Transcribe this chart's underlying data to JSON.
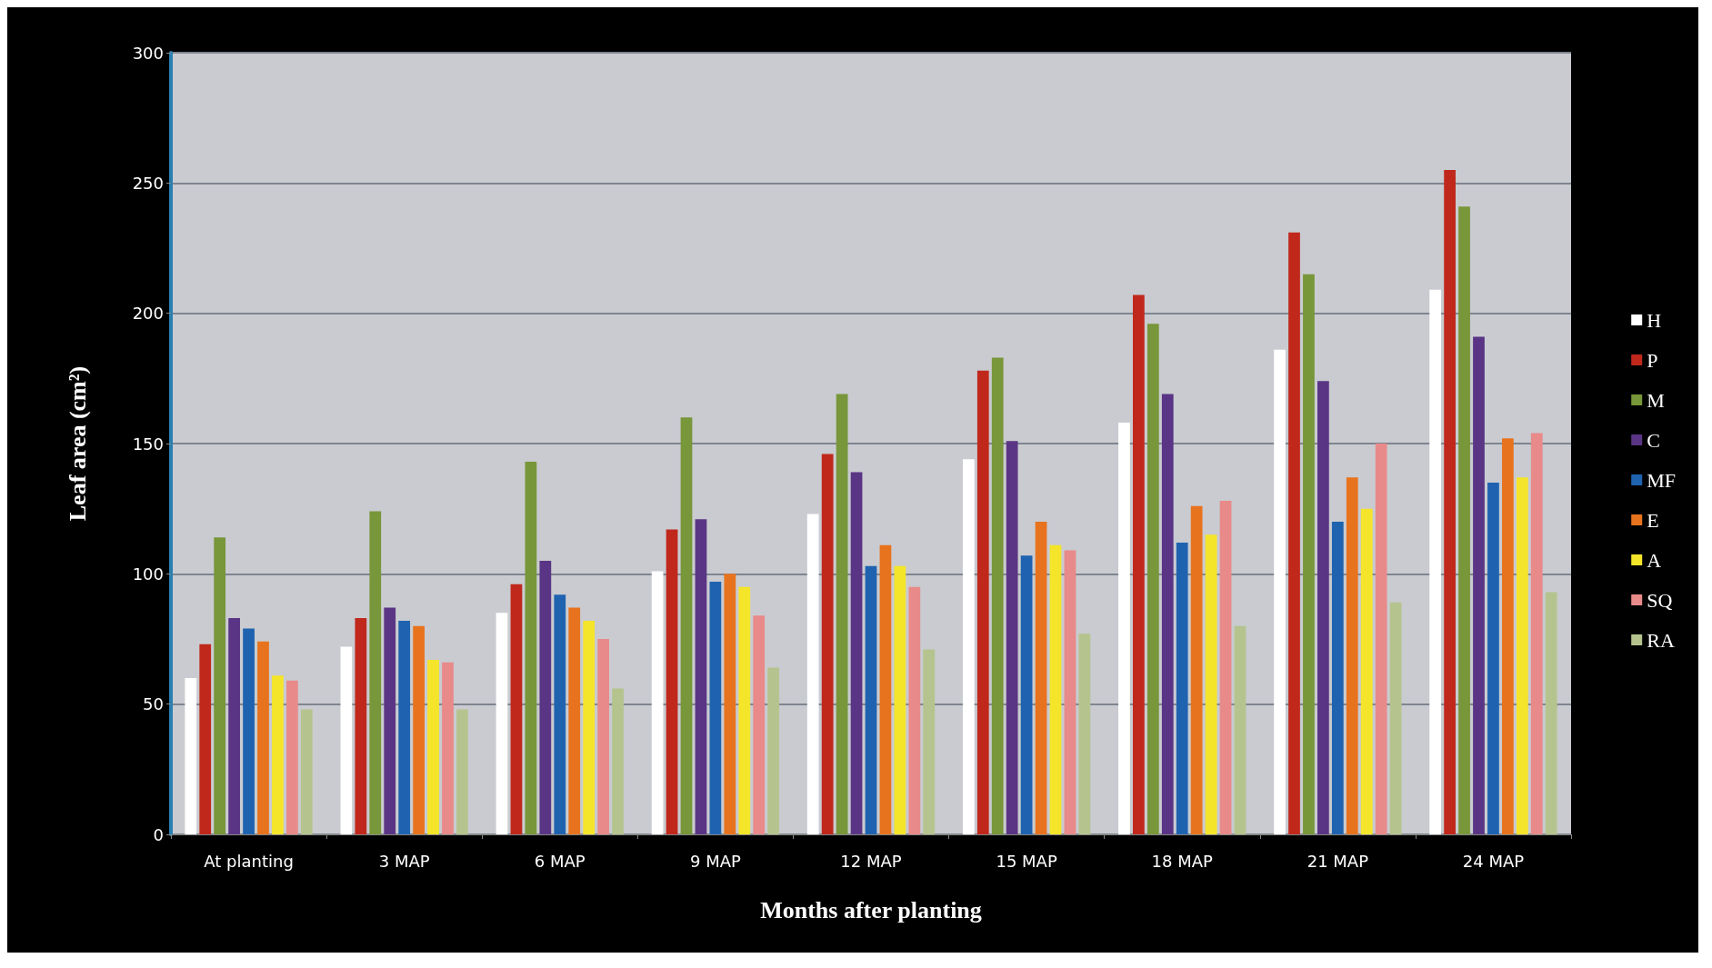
{
  "chart_data": {
    "type": "bar",
    "xlabel": "Months after planting",
    "ylabel": "Leaf area (cm²)",
    "categories": [
      "At planting",
      "3 MAP",
      "6 MAP",
      "9 MAP",
      "12 MAP",
      "15 MAP",
      "18 MAP",
      "21 MAP",
      "24 MAP"
    ],
    "series": [
      {
        "name": "H",
        "color": "#ffffff",
        "values": [
          60,
          72,
          85,
          101,
          123,
          144,
          158,
          186,
          209
        ]
      },
      {
        "name": "P",
        "color": "#c0281c",
        "values": [
          73,
          83,
          96,
          117,
          146,
          178,
          207,
          231,
          255
        ]
      },
      {
        "name": "M",
        "color": "#78963a",
        "values": [
          114,
          124,
          143,
          160,
          169,
          183,
          196,
          215,
          241
        ]
      },
      {
        "name": "C",
        "color": "#5b3585",
        "values": [
          83,
          87,
          105,
          121,
          139,
          151,
          169,
          174,
          191
        ]
      },
      {
        "name": "MF",
        "color": "#1f63b0",
        "values": [
          79,
          82,
          92,
          97,
          103,
          107,
          112,
          120,
          135
        ]
      },
      {
        "name": "E",
        "color": "#e8731e",
        "values": [
          74,
          80,
          87,
          100,
          111,
          120,
          126,
          137,
          152
        ]
      },
      {
        "name": "A",
        "color": "#f5e52a",
        "values": [
          61,
          67,
          82,
          95,
          103,
          111,
          115,
          125,
          137
        ]
      },
      {
        "name": "SQ",
        "color": "#e88a8a",
        "values": [
          59,
          66,
          75,
          84,
          95,
          109,
          128,
          150,
          154
        ]
      },
      {
        "name": "RA",
        "color": "#b5c48e",
        "values": [
          48,
          48,
          56,
          64,
          71,
          77,
          80,
          89,
          93
        ]
      }
    ],
    "ylim": [
      0,
      300
    ],
    "yticks": [
      0,
      50,
      100,
      150,
      200,
      250,
      300
    ],
    "grid": "y",
    "legend": "right"
  }
}
